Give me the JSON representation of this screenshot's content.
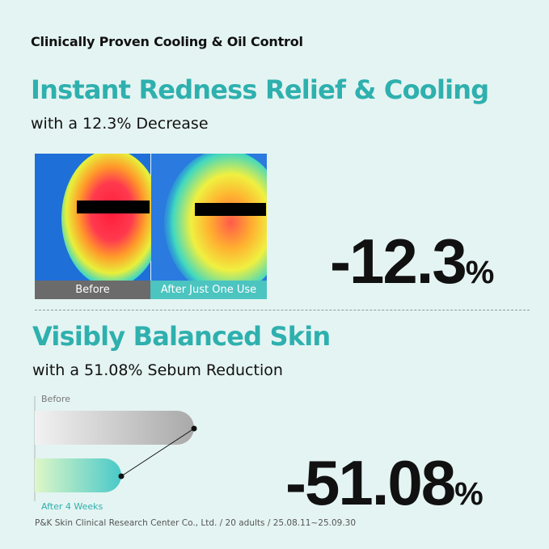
{
  "header": {
    "title": "Clinically Proven Cooling & Oil Control"
  },
  "section1": {
    "title": "Instant Redness Relief & Cooling",
    "subtitle": "with a 12.3% Decrease",
    "images": {
      "before": "Before",
      "after": "After Just One Use"
    },
    "stat": {
      "number": "-12.3",
      "unit": "%"
    }
  },
  "section2": {
    "title": "Visibly Balanced Skin",
    "subtitle": "with a 51.08% Sebum Reduction",
    "bars": {
      "before": "Before",
      "after": "After 4 Weeks"
    },
    "stat": {
      "number": "-51.08",
      "unit": "%"
    }
  },
  "footnote": "P&K Skin Clinical Research Center Co., Ltd. / 20 adults / 25.08.11~25.09.30"
}
